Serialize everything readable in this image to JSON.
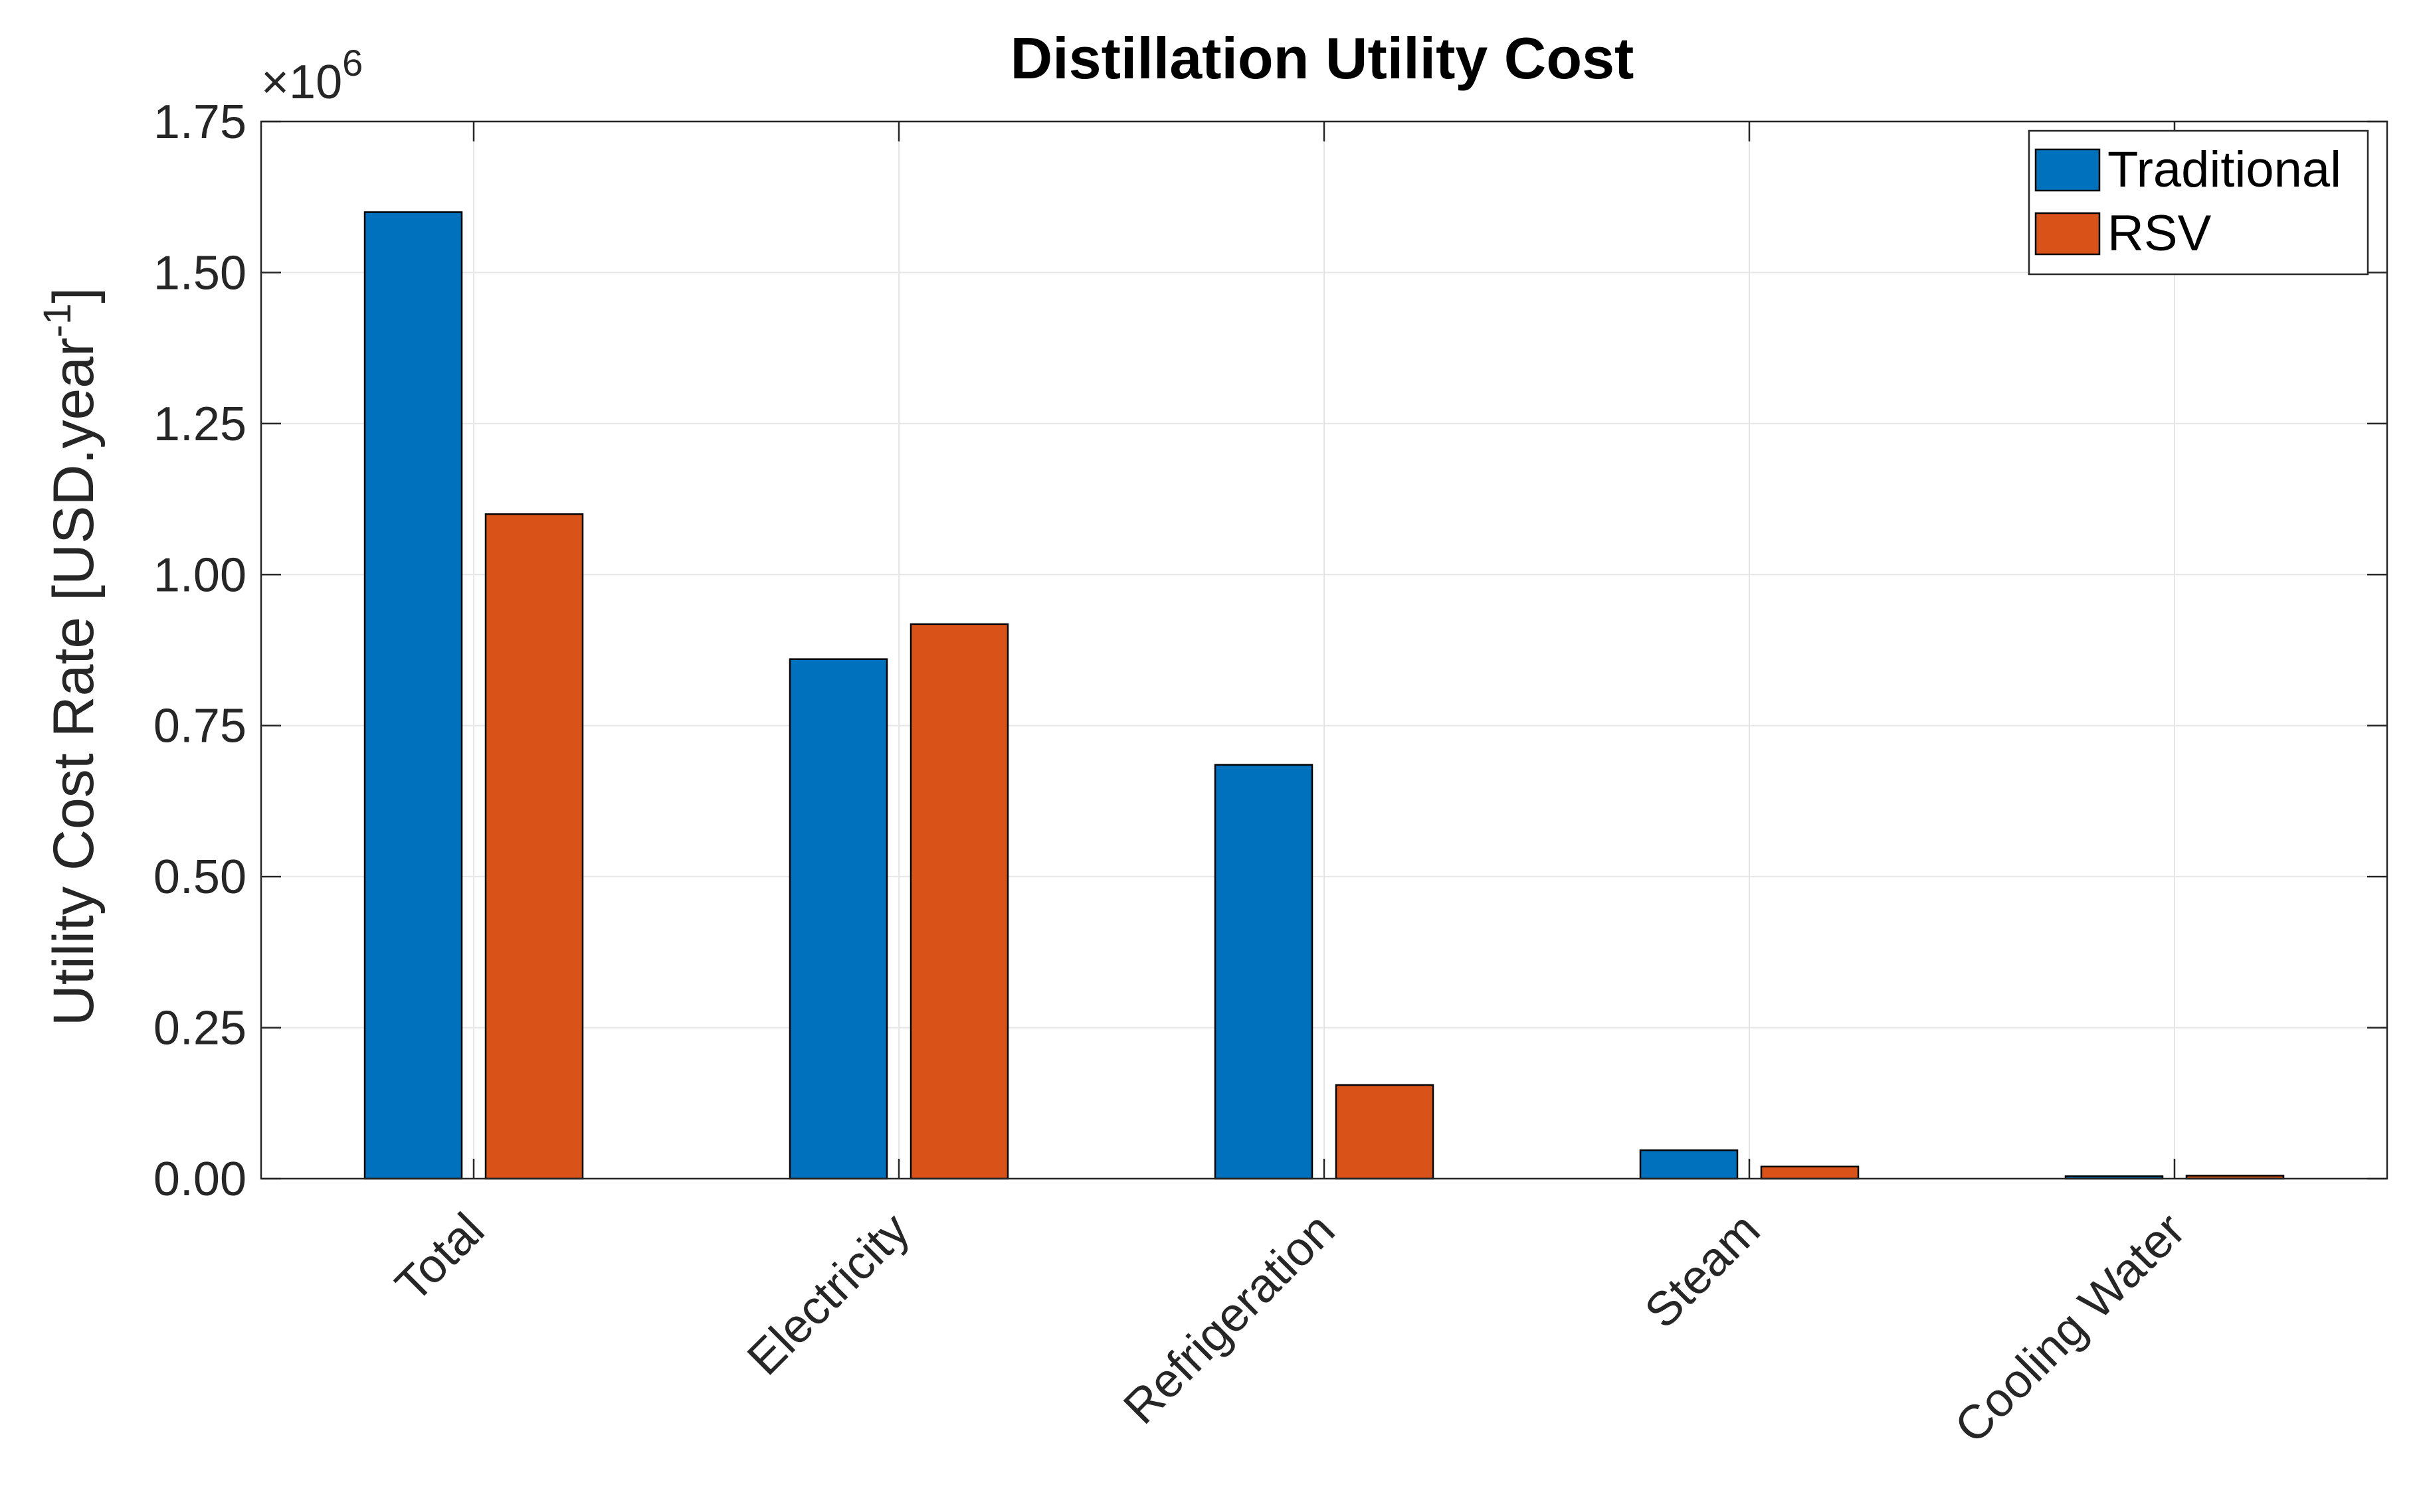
{
  "chart_data": {
    "type": "bar",
    "title": "Distillation Utility Cost",
    "xlabel": "",
    "ylabel": "Utility Cost Rate [USD.year",
    "ylabel_superscript": "-1",
    "ylabel_suffix": "]",
    "y_exponent_base": "×10",
    "y_exponent_power": "6",
    "ylim": [
      0,
      1.75
    ],
    "yticks": [
      0,
      0.25,
      0.5,
      0.75,
      1.0,
      1.25,
      1.5,
      1.75
    ],
    "ytick_labels": [
      "0.00",
      "0.25",
      "0.50",
      "0.75",
      "1.00",
      "1.25",
      "1.50",
      "1.75"
    ],
    "categories": [
      "Total",
      "Electricity",
      "Refrigeration",
      "Steam",
      "Cooling Water"
    ],
    "series": [
      {
        "name": "Traditional",
        "color": "#0072BD",
        "values": [
          1.6,
          0.86,
          0.685,
          0.047,
          0.004
        ]
      },
      {
        "name": "RSV",
        "color": "#D95319",
        "values": [
          1.1,
          0.918,
          0.155,
          0.02,
          0.005
        ]
      }
    ],
    "grid": true,
    "legend_position": "top-right"
  }
}
